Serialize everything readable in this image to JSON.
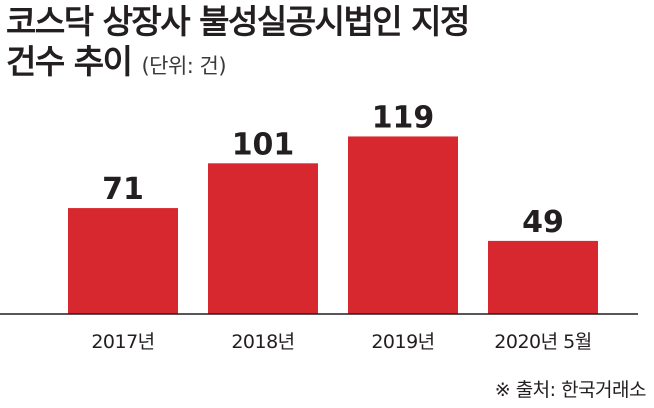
{
  "title_line1": "코스닥 상장사 불성실공시법인 지정",
  "title_line2": "건수 추이",
  "unit": "(단위: 건)",
  "source": "※ 출처: 한국거래소",
  "colors": {
    "bar": "#d8282f",
    "text": "#231f20",
    "axis": "#231f20"
  },
  "chart_data": {
    "type": "bar",
    "categories": [
      "2017년",
      "2018년",
      "2019년",
      "2020년 5월"
    ],
    "values": [
      71,
      101,
      119,
      49
    ],
    "title": "코스닥 상장사 불성실공시법인 지정 건수 추이",
    "xlabel": "",
    "ylabel": "",
    "ylim": [
      0,
      130
    ],
    "grid": false,
    "legend": "none"
  }
}
